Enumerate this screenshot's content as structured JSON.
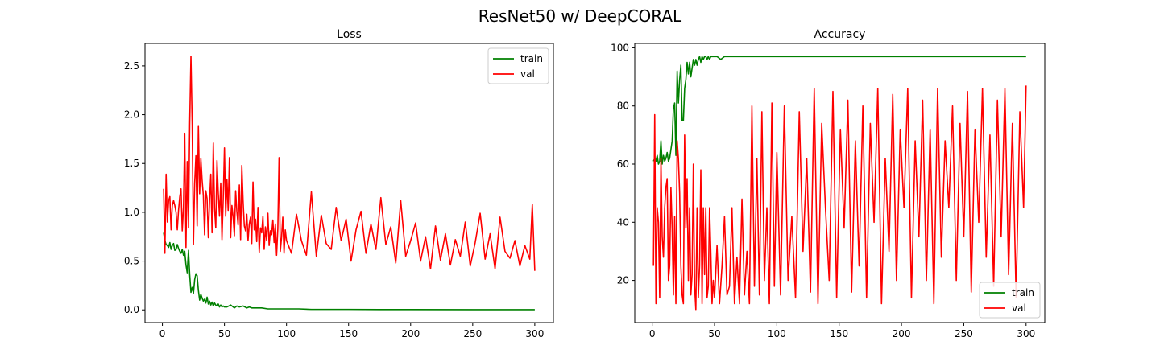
{
  "figure": {
    "title": "ResNet50 w/ DeepCORAL"
  },
  "chart_data": [
    {
      "type": "line",
      "title": "Loss",
      "xlabel": "",
      "ylabel": "",
      "xlim": [
        -14,
        315
      ],
      "ylim": [
        -0.13,
        2.73
      ],
      "xticks": [
        0,
        50,
        100,
        150,
        200,
        250,
        300
      ],
      "xtick_labels": [
        "0",
        "50",
        "100",
        "150",
        "200",
        "250",
        "300"
      ],
      "yticks": [
        0,
        0.5,
        1,
        1.5,
        2,
        2.5
      ],
      "ytick_labels": [
        "0.0",
        "0.5",
        "1.0",
        "1.5",
        "2.0",
        "2.5"
      ],
      "legend_position": "top-right",
      "series": [
        {
          "name": "train",
          "color": "#008000",
          "x": [
            1,
            2,
            3,
            4,
            5,
            6,
            7,
            8,
            9,
            10,
            11,
            12,
            13,
            14,
            15,
            16,
            17,
            18,
            19,
            20,
            21,
            22,
            23,
            24,
            25,
            26,
            27,
            28,
            29,
            30,
            31,
            32,
            33,
            34,
            35,
            36,
            37,
            38,
            39,
            40,
            41,
            42,
            43,
            44,
            45,
            46,
            47,
            48,
            49,
            50,
            52,
            55,
            58,
            60,
            62,
            65,
            68,
            70,
            72,
            75,
            80,
            85,
            90,
            95,
            100,
            110,
            120,
            130,
            140,
            150,
            175,
            200,
            250,
            300
          ],
          "y": [
            0.79,
            0.71,
            0.67,
            0.66,
            0.64,
            0.69,
            0.62,
            0.66,
            0.68,
            0.61,
            0.62,
            0.67,
            0.63,
            0.6,
            0.58,
            0.62,
            0.56,
            0.6,
            0.46,
            0.38,
            0.61,
            0.36,
            0.18,
            0.23,
            0.17,
            0.31,
            0.37,
            0.35,
            0.2,
            0.1,
            0.16,
            0.12,
            0.09,
            0.11,
            0.07,
            0.13,
            0.06,
            0.09,
            0.05,
            0.08,
            0.04,
            0.07,
            0.05,
            0.04,
            0.06,
            0.03,
            0.05,
            0.03,
            0.04,
            0.03,
            0.03,
            0.05,
            0.02,
            0.04,
            0.03,
            0.04,
            0.02,
            0.03,
            0.02,
            0.02,
            0.02,
            0.01,
            0.01,
            0.01,
            0.01,
            0.01,
            0.005,
            0.005,
            0.005,
            0.005,
            0.003,
            0.003,
            0.002,
            0.002
          ]
        },
        {
          "name": "val",
          "color": "#ff0000",
          "x": [
            1,
            2,
            3,
            4,
            5,
            6,
            7,
            8,
            9,
            10,
            11,
            12,
            13,
            14,
            15,
            16,
            17,
            18,
            19,
            20,
            21,
            22,
            23,
            24,
            25,
            26,
            27,
            28,
            29,
            30,
            31,
            32,
            33,
            34,
            35,
            36,
            37,
            38,
            39,
            40,
            41,
            42,
            43,
            44,
            45,
            46,
            47,
            48,
            49,
            50,
            51,
            52,
            53,
            54,
            55,
            56,
            57,
            58,
            59,
            60,
            61,
            62,
            63,
            64,
            65,
            66,
            67,
            68,
            69,
            70,
            71,
            72,
            73,
            74,
            75,
            76,
            77,
            78,
            79,
            80,
            81,
            82,
            83,
            84,
            85,
            86,
            87,
            88,
            89,
            90,
            91,
            92,
            93,
            94,
            95,
            96,
            97,
            98,
            99,
            100,
            104,
            108,
            112,
            116,
            120,
            124,
            128,
            132,
            136,
            140,
            144,
            148,
            152,
            156,
            160,
            164,
            168,
            172,
            176,
            180,
            184,
            188,
            192,
            196,
            200,
            204,
            208,
            212,
            216,
            220,
            224,
            228,
            232,
            236,
            240,
            244,
            248,
            252,
            256,
            260,
            264,
            268,
            272,
            276,
            280,
            284,
            288,
            292,
            296,
            298,
            300
          ],
          "y": [
            1.24,
            0.58,
            1.39,
            0.9,
            1.12,
            1.16,
            0.82,
            1.07,
            1.12,
            1.07,
            1.0,
            0.82,
            1.02,
            1.16,
            1.24,
            0.81,
            1.05,
            1.81,
            0.64,
            1.52,
            0.84,
            1.9,
            2.6,
            1.9,
            0.67,
            1.3,
            1.58,
            0.86,
            1.88,
            1.19,
            1.55,
            1.33,
            1.17,
            0.77,
            1.22,
            1.14,
            0.74,
            1.12,
            1.39,
            0.79,
            1.71,
            1.04,
            0.84,
            1.53,
            1.2,
            0.96,
            1.3,
            0.72,
            1.13,
            1.66,
            0.96,
            1.34,
            1.02,
            1.56,
            0.74,
            1.07,
            0.95,
            0.76,
            1.22,
            1.01,
            0.87,
            1.28,
            0.72,
            1.48,
            1.12,
            0.86,
            0.81,
            0.98,
            0.71,
            0.88,
            0.95,
            0.68,
            1.31,
            0.82,
            0.93,
            0.7,
            1.05,
            0.59,
            0.84,
            0.79,
            0.96,
            0.62,
            0.85,
            0.71,
            0.99,
            0.66,
            0.81,
            0.77,
            0.92,
            0.69,
            0.88,
            0.56,
            0.83,
            1.56,
            0.6,
            0.74,
            0.95,
            0.58,
            0.82,
            0.71,
            0.58,
            0.98,
            0.71,
            0.56,
            1.21,
            0.55,
            0.97,
            0.68,
            0.62,
            1.05,
            0.71,
            0.93,
            0.5,
            0.82,
            1.01,
            0.58,
            0.88,
            0.62,
            1.15,
            0.67,
            0.85,
            0.48,
            1.12,
            0.55,
            0.71,
            0.89,
            0.5,
            0.75,
            0.42,
            0.86,
            0.51,
            0.78,
            0.46,
            0.72,
            0.55,
            0.9,
            0.45,
            0.69,
            0.99,
            0.52,
            0.78,
            0.42,
            0.95,
            0.6,
            0.53,
            0.71,
            0.45,
            0.66,
            0.52,
            1.08,
            0.4
          ]
        }
      ]
    },
    {
      "type": "line",
      "title": "Accuracy",
      "xlabel": "",
      "ylabel": "",
      "xlim": [
        -14,
        315
      ],
      "ylim": [
        5.5,
        101.5
      ],
      "xticks": [
        0,
        50,
        100,
        150,
        200,
        250,
        300
      ],
      "xtick_labels": [
        "0",
        "50",
        "100",
        "150",
        "200",
        "250",
        "300"
      ],
      "yticks": [
        20,
        40,
        60,
        80,
        100
      ],
      "ytick_labels": [
        "20",
        "40",
        "60",
        "80",
        "100"
      ],
      "legend_position": "bottom-right",
      "series": [
        {
          "name": "train",
          "color": "#008000",
          "x": [
            1,
            2,
            3,
            4,
            5,
            6,
            7,
            8,
            9,
            10,
            11,
            12,
            13,
            14,
            15,
            16,
            17,
            18,
            19,
            20,
            21,
            22,
            23,
            24,
            25,
            26,
            27,
            28,
            29,
            30,
            31,
            32,
            33,
            34,
            35,
            36,
            37,
            38,
            39,
            40,
            41,
            42,
            43,
            44,
            45,
            46,
            47,
            48,
            49,
            50,
            52,
            55,
            58,
            60,
            300
          ],
          "y": [
            61,
            62,
            61,
            63,
            60,
            61,
            68,
            60,
            63,
            61,
            62,
            64,
            61,
            62,
            65,
            68,
            79,
            81,
            63,
            92,
            81,
            89,
            94,
            75,
            75,
            86,
            89,
            95,
            91,
            95,
            90,
            93,
            96,
            94,
            96,
            94,
            96,
            97,
            95,
            97,
            96,
            97,
            97,
            96,
            97,
            96,
            97,
            97,
            97,
            97,
            97,
            96,
            97,
            97,
            97
          ]
        },
        {
          "name": "val",
          "color": "#ff0000",
          "x": [
            1,
            2,
            3,
            4,
            5,
            6,
            7,
            8,
            9,
            10,
            11,
            12,
            13,
            14,
            15,
            16,
            17,
            18,
            19,
            20,
            21,
            22,
            23,
            24,
            25,
            26,
            27,
            28,
            29,
            30,
            31,
            32,
            33,
            34,
            35,
            36,
            37,
            38,
            39,
            40,
            41,
            42,
            43,
            44,
            45,
            46,
            47,
            48,
            49,
            50,
            52,
            54,
            56,
            58,
            60,
            62,
            64,
            66,
            68,
            70,
            72,
            74,
            76,
            78,
            80,
            82,
            84,
            86,
            88,
            90,
            92,
            94,
            96,
            98,
            100,
            103,
            106,
            109,
            112,
            115,
            118,
            121,
            124,
            127,
            130,
            133,
            136,
            139,
            142,
            145,
            148,
            151,
            154,
            157,
            160,
            163,
            166,
            169,
            172,
            175,
            178,
            181,
            184,
            187,
            190,
            193,
            196,
            199,
            202,
            205,
            208,
            211,
            214,
            217,
            220,
            223,
            226,
            229,
            232,
            235,
            238,
            241,
            244,
            247,
            250,
            253,
            256,
            259,
            262,
            265,
            268,
            271,
            274,
            277,
            280,
            283,
            286,
            289,
            292,
            295,
            298,
            300
          ],
          "y": [
            25,
            77,
            12,
            45,
            40,
            14,
            62,
            35,
            28,
            45,
            52,
            55,
            20,
            25,
            52,
            38,
            15,
            42,
            12,
            68,
            62,
            50,
            25,
            15,
            12,
            70,
            38,
            55,
            20,
            45,
            15,
            22,
            60,
            18,
            10,
            45,
            14,
            25,
            58,
            12,
            45,
            22,
            45,
            14,
            18,
            45,
            30,
            12,
            20,
            14,
            32,
            12,
            25,
            42,
            15,
            18,
            45,
            12,
            28,
            12,
            48,
            15,
            30,
            12,
            80,
            18,
            62,
            15,
            78,
            20,
            45,
            12,
            81,
            18,
            64,
            15,
            80,
            20,
            42,
            14,
            78,
            30,
            62,
            16,
            86,
            12,
            74,
            45,
            20,
            85,
            14,
            72,
            38,
            82,
            16,
            68,
            25,
            80,
            14,
            74,
            40,
            86,
            12,
            62,
            30,
            84,
            20,
            72,
            45,
            86,
            14,
            68,
            35,
            82,
            20,
            72,
            12,
            86,
            28,
            68,
            45,
            80,
            20,
            74,
            35,
            85,
            16,
            72,
            40,
            86,
            28,
            70,
            18,
            82,
            35,
            86,
            22,
            74,
            14,
            78,
            45,
            87
          ]
        }
      ]
    }
  ]
}
